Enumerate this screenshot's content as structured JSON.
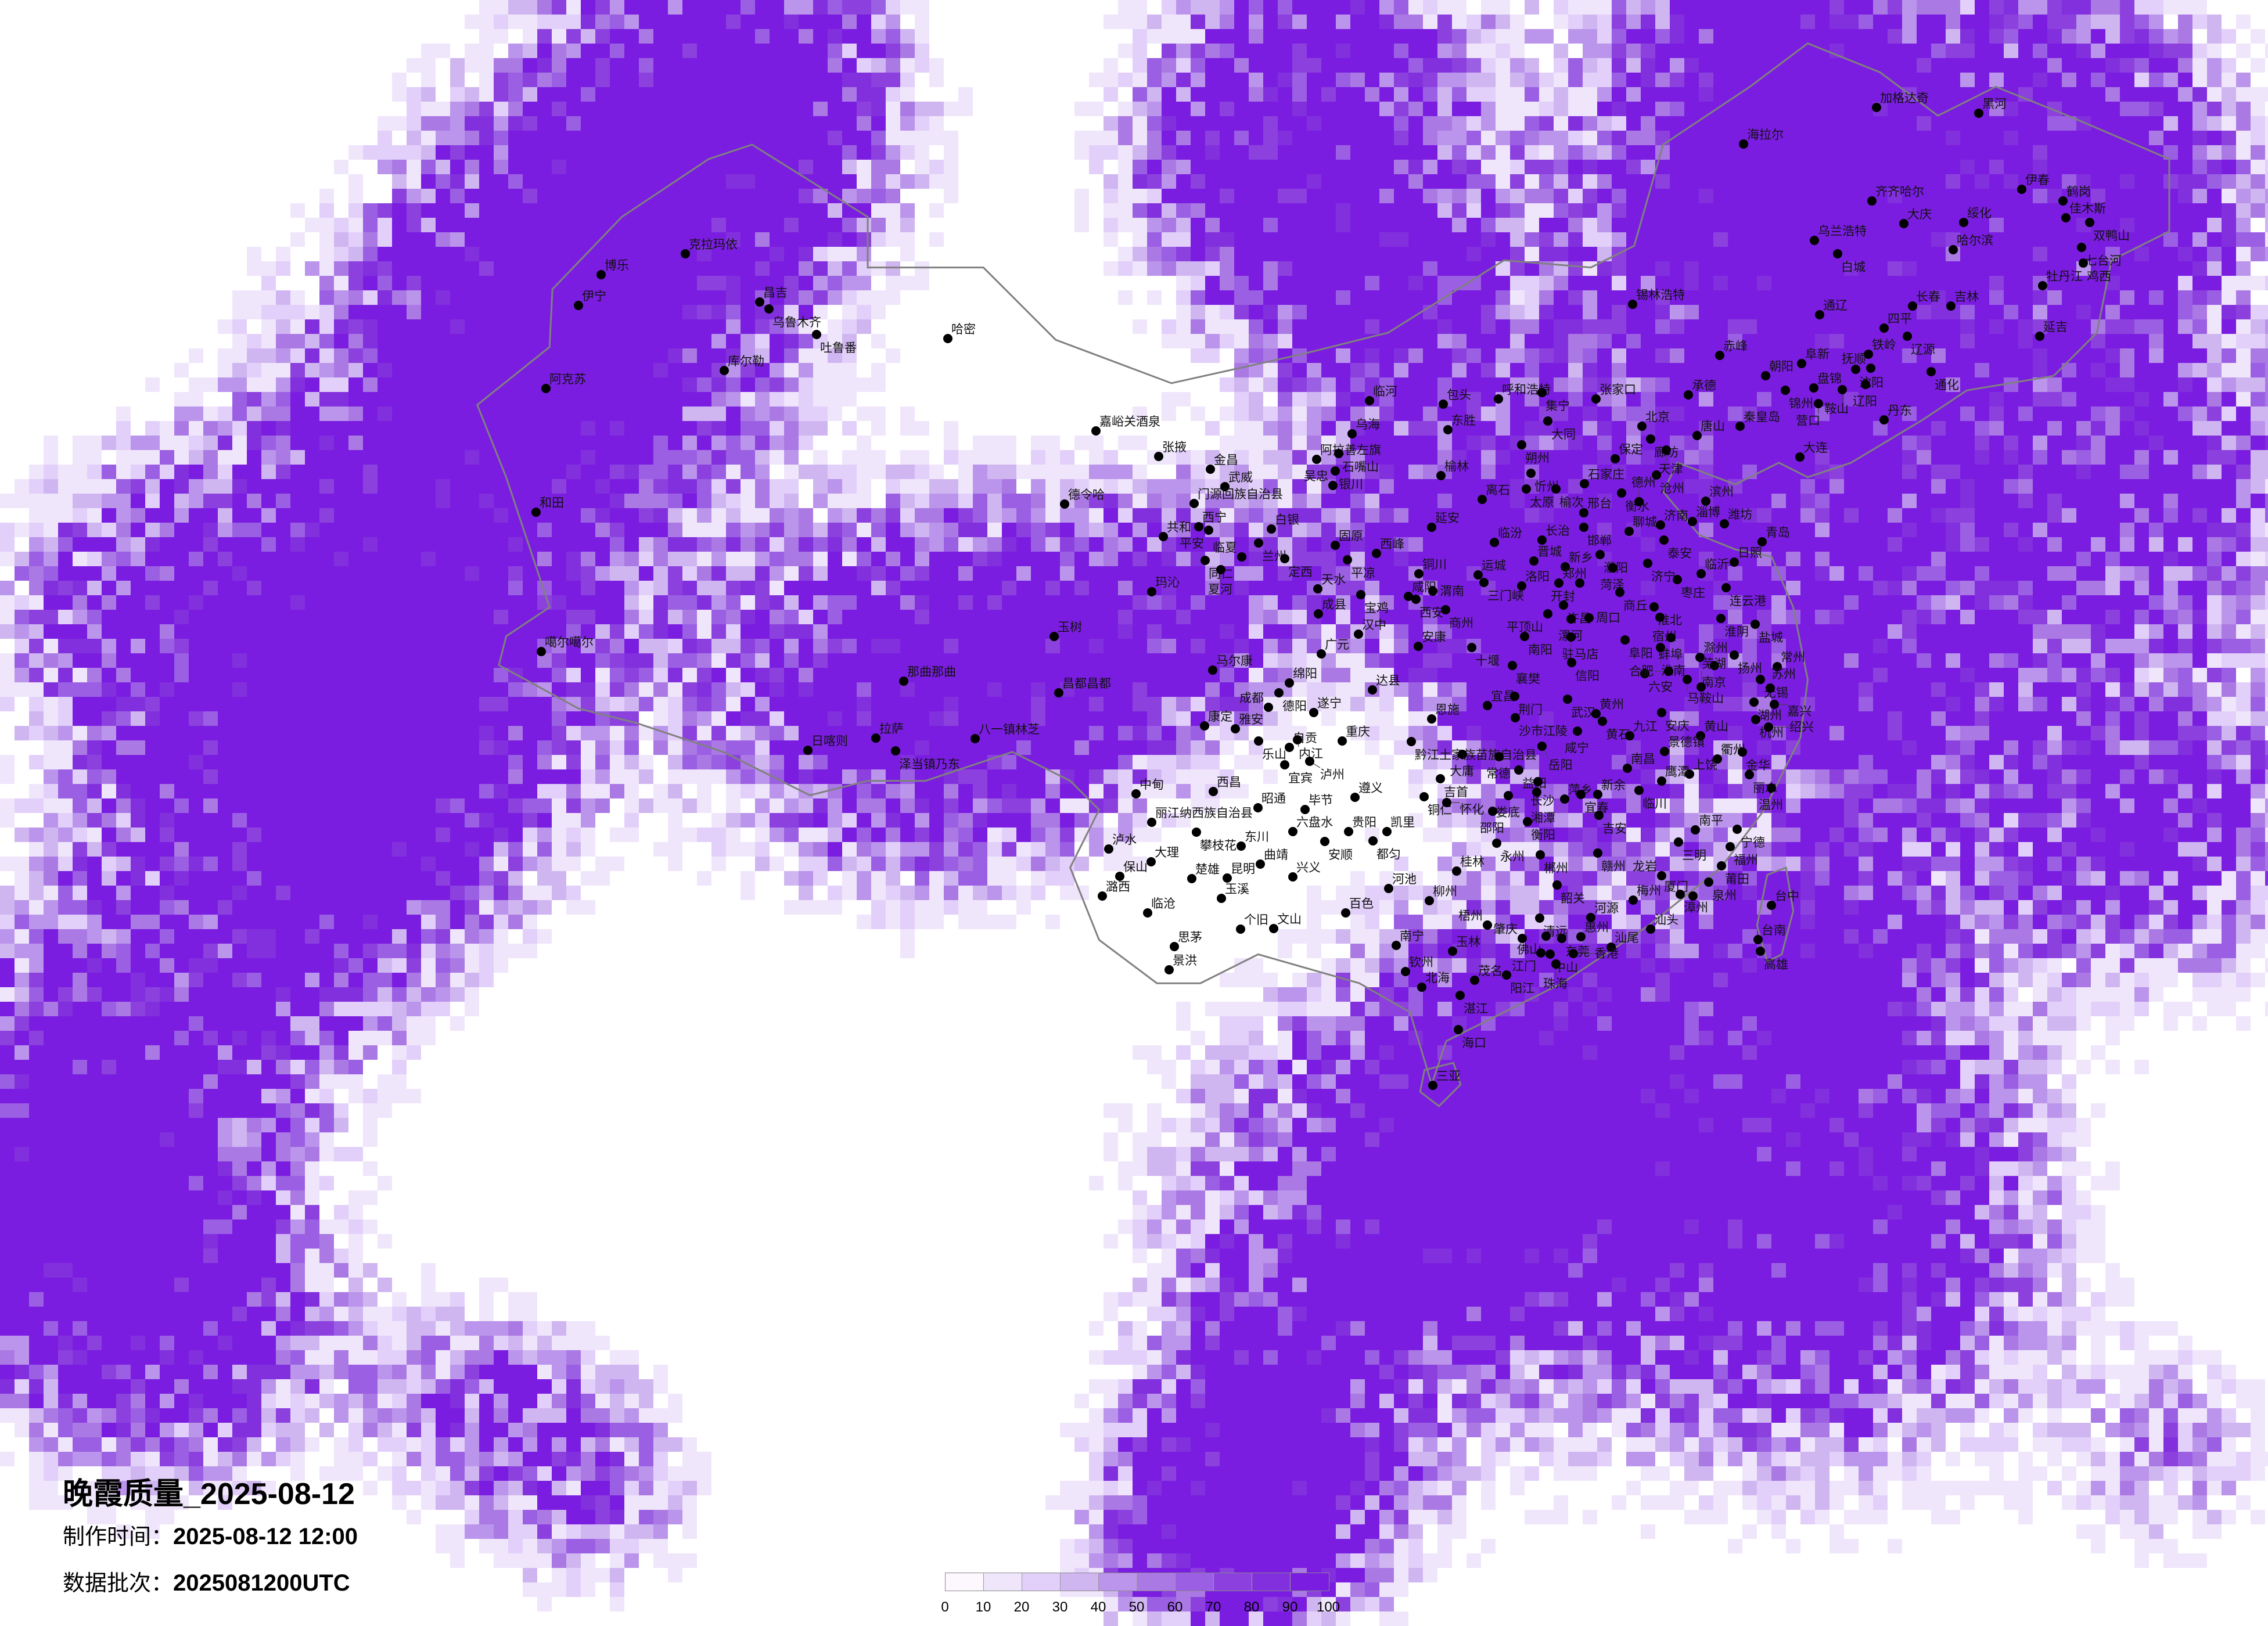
{
  "title": "晚霞质量_2025-08-12",
  "info": {
    "made_label": "制作时间：",
    "made_value": "2025-08-12 12:00",
    "batch_label": "数据批次：",
    "batch_value": "2025081200UTC"
  },
  "legend": {
    "ticks": [
      "0",
      "10",
      "20",
      "30",
      "40",
      "50",
      "60",
      "70",
      "80",
      "90",
      "100"
    ],
    "colors": [
      "#fdf8fd",
      "#f0e6fb",
      "#e2d0fa",
      "#d0b6f1",
      "#bb95eb",
      "#ab79e4",
      "#9b5fe4",
      "#8c41df",
      "#8230dd",
      "#7a1de0"
    ]
  },
  "border_color": "#808080",
  "cities": [
    "克拉玛依",
    "博乐",
    "伊宁",
    "昌吉",
    "乌鲁木齐",
    "吐鲁番",
    "哈密",
    "库尔勒",
    "阿克苏",
    "和田",
    "噶尔噶尔",
    "那曲那曲",
    "加格达奇",
    "黑河",
    "海拉尔",
    "齐齐哈尔",
    "大庆",
    "绥化",
    "伊春",
    "鹤岗",
    "佳木斯",
    "双鸭山",
    "七台河",
    "鸡西",
    "哈尔滨",
    "乌兰浩特",
    "白城",
    "牡丹江",
    "锡林浩特",
    "长春",
    "吉林",
    "通辽",
    "四平",
    "辽源",
    "延吉",
    "赤峰",
    "铁岭",
    "阜新",
    "沈阳",
    "抚顺",
    "朝阳",
    "通化",
    "辽阳",
    "锦州",
    "盘锦",
    "鞍山",
    "营口",
    "承德",
    "丹东",
    "北京",
    "廊坊",
    "唐山",
    "秦皇岛",
    "天津",
    "大连",
    "保定",
    "沧州",
    "临河",
    "包头",
    "呼和浩特",
    "集宁",
    "张家口",
    "大同",
    "乌海",
    "东胜",
    "朔州",
    "阿拉善左旗",
    "石嘴山",
    "银川",
    "吴忠",
    "榆林",
    "忻州",
    "太原",
    "榆次",
    "石家庄",
    "离石",
    "武威",
    "衡水",
    "德州",
    "滨州",
    "邢台",
    "邯郸",
    "延安",
    "白银",
    "兰州",
    "聊城",
    "济南",
    "淄博",
    "潍坊",
    "青岛",
    "泰安",
    "长治",
    "临汾",
    "固原",
    "平凉",
    "西峰",
    "临夏",
    "定西",
    "濮阳",
    "晋城",
    "新乡",
    "菏泽",
    "济宁",
    "日照",
    "临沂",
    "枣庄",
    "运城",
    "三门峡",
    "铜川",
    "洛阳",
    "郑州",
    "开封",
    "天水",
    "宝鸡",
    "咸阳",
    "西安",
    "渭南",
    "商丘",
    "连云港",
    "许昌",
    "商州",
    "成县",
    "平顶山",
    "漯河",
    "周口",
    "淮北",
    "宿州",
    "淮阴",
    "盐城",
    "汉中",
    "南阳",
    "驻马店",
    "阜阳",
    "安康",
    "十堰",
    "蚌埠",
    "淮南",
    "广元",
    "滁州",
    "信阳",
    "襄樊",
    "扬州",
    "六安",
    "合肥",
    "南京",
    "常州",
    "无锡",
    "苏州",
    "马鞍山",
    "芜湖",
    "湖州",
    "嘉兴",
    "昌都昌都",
    "绵阳",
    "德阳",
    "成都",
    "达县",
    "遂宁",
    "康定",
    "雅安",
    "乐山",
    "自贡",
    "内江",
    "重庆",
    "宜宾",
    "泸州",
    "恩施",
    "宜昌",
    "荆门",
    "沙市江陵",
    "武汉",
    "黄州",
    "黄石",
    "咸宁",
    "九江",
    "安庆",
    "黄山",
    "景德镇",
    "衢州",
    "金华",
    "杭州",
    "绍兴",
    "丽水",
    "温州",
    "黔江土家族苗族自治县",
    "大庸",
    "常德",
    "岳阳",
    "益阳",
    "长沙",
    "湘潭",
    "萍乡",
    "宜春",
    "新余",
    "南昌",
    "上饶",
    "鹰潭",
    "临川",
    "吉安",
    "吉首",
    "铜仁",
    "怀化",
    "娄底",
    "邵阳",
    "衡阳",
    "永州",
    "郴州",
    "赣州",
    "南平",
    "三明",
    "宁德",
    "福州",
    "莆田",
    "泉州",
    "厦门",
    "漳州",
    "龙岩",
    "梅州",
    "汕头",
    "汕尾",
    "河源",
    "韶关",
    "清远",
    "惠州",
    "东莞",
    "佛山",
    "肇庆",
    "江门",
    "中山",
    "香港",
    "珠海",
    "阳江",
    "茂名",
    "湛江",
    "海口",
    "三亚",
    "北海",
    "钦州",
    "南宁",
    "玉林",
    "梧州",
    "柳州",
    "桂林",
    "河池",
    "百色",
    "贵阳",
    "遵义",
    "毕节",
    "六盘水",
    "安顺",
    "都匀",
    "凯里",
    "昭通",
    "兴义",
    "曲靖",
    "东川",
    "昆明",
    "楚雄",
    "玉溪",
    "个旧",
    "文山",
    "思茅",
    "景洪",
    "临沧",
    "潞西",
    "保山",
    "大理",
    "泸水",
    "中甸",
    "丽江纳西族自治县",
    "攀枝花",
    "西昌",
    "台中",
    "台南",
    "高雄",
    "嘉峪关酒泉",
    "张掖",
    "金昌",
    "门源回族自治县",
    "德令哈",
    "西宁",
    "平安",
    "共和",
    "同仁",
    "夏河",
    "玛沁",
    "玉树",
    "马尔康",
    "拉萨",
    "日喀则",
    "泽当镇乃东",
    "八一镇林芝"
  ]
}
